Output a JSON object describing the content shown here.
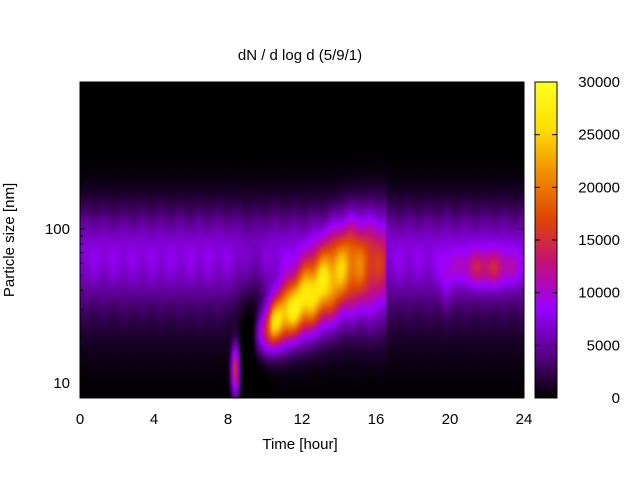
{
  "chart_data": {
    "type": "heatmap",
    "title": "dN / d log d (5/9/1)",
    "xlabel": "Time [hour]",
    "ylabel": "Particle size [nm]",
    "x_range": [
      0,
      24
    ],
    "y_range": [
      8,
      900
    ],
    "y_scale": "log",
    "x_ticks": [
      0,
      4,
      8,
      12,
      16,
      20,
      24
    ],
    "y_ticks": [
      {
        "value": 10,
        "label": "10"
      },
      {
        "value": 100,
        "label": "100"
      }
    ],
    "colorbar": {
      "range": [
        0,
        30000
      ],
      "ticks": [
        0,
        5000,
        10000,
        15000,
        20000,
        25000,
        30000
      ],
      "colormap": [
        "#000000",
        "#5a008c",
        "#9a00ff",
        "#c3107a",
        "#e04800",
        "#f09000",
        "#ffe000",
        "#ffff20"
      ]
    },
    "features": [
      {
        "kind": "background",
        "x": [
          0,
          24
        ],
        "y": [
          8,
          900
        ],
        "value": 2000
      },
      {
        "kind": "accumulation-mode-band",
        "x": [
          0,
          24
        ],
        "y_center": 70,
        "value": 7000
      },
      {
        "kind": "nucleation-burst",
        "x": [
          8.2,
          8.6
        ],
        "y": [
          9,
          20
        ],
        "value": 15000
      },
      {
        "kind": "growth-banana",
        "x": [
          9.5,
          15.5
        ],
        "y_start": 20,
        "y_end": 55,
        "peak_value": 25000
      },
      {
        "kind": "evening-mode",
        "x": [
          19.5,
          24
        ],
        "y_center": 55,
        "value": 12000
      }
    ],
    "grid": false,
    "legend": "colorbar-right"
  }
}
